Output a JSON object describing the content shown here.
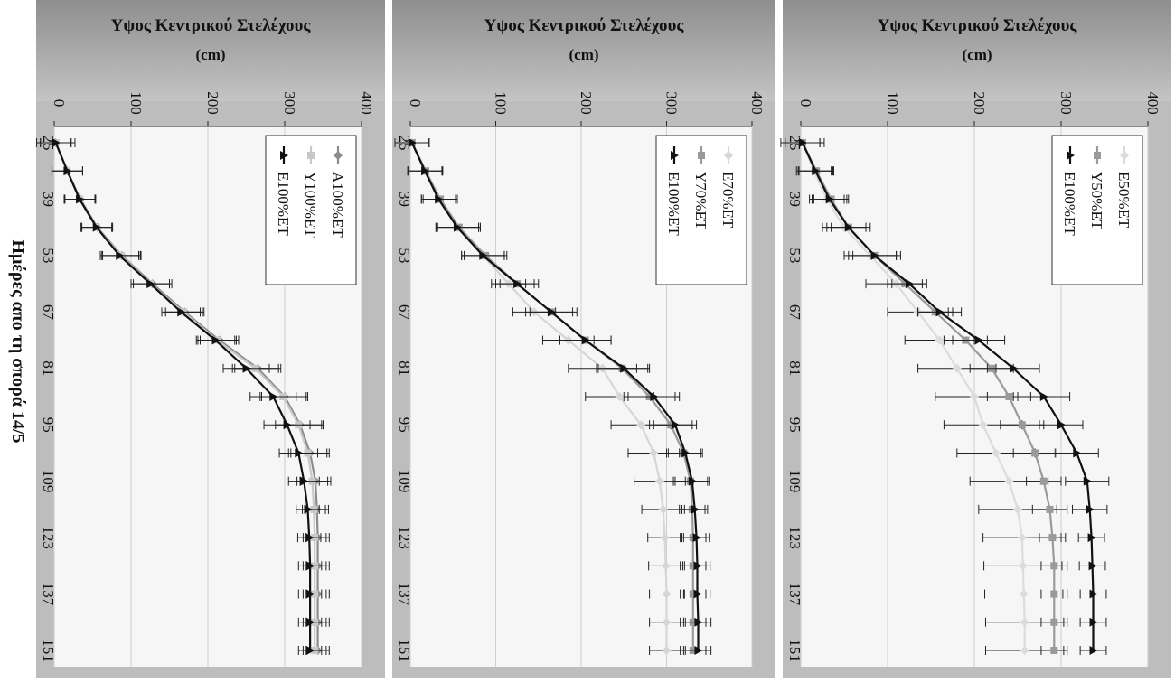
{
  "figure": {
    "xlabel": "Ημέρες απο τη σπορά 14/5"
  },
  "chart_data": [
    {
      "type": "line",
      "ylabel": "Υψος Κεντρικού Στελέχους (cm)",
      "xlabel": "Ημέρες απο τη σπορά 14/5",
      "x": [
        25,
        32,
        39,
        46,
        53,
        60,
        67,
        74,
        81,
        88,
        95,
        102,
        109,
        116,
        123,
        130,
        137,
        144,
        151
      ],
      "x_ticks": [
        25,
        39,
        53,
        67,
        81,
        95,
        109,
        123,
        137,
        151
      ],
      "ylim": [
        0,
        400
      ],
      "y_ticks": [
        0,
        100,
        200,
        300,
        400
      ],
      "grid": true,
      "legend_position": "top-right",
      "series": [
        {
          "name": "E50%ET",
          "color": "#dcdcdc",
          "marker": "diamond",
          "values": [
            2,
            15,
            30,
            50,
            80,
            110,
            135,
            160,
            180,
            200,
            210,
            225,
            240,
            250,
            255,
            256,
            257,
            258,
            258
          ],
          "error": [
            20,
            20,
            20,
            25,
            30,
            35,
            35,
            40,
            45,
            45,
            45,
            45,
            45,
            45,
            45,
            45,
            45,
            45,
            45
          ]
        },
        {
          "name": "Y50%ET",
          "color": "#9a9a9a",
          "marker": "square",
          "values": [
            2,
            18,
            35,
            55,
            85,
            120,
            155,
            190,
            220,
            240,
            255,
            270,
            280,
            287,
            290,
            292,
            292,
            292,
            292
          ],
          "error": [
            20,
            20,
            20,
            25,
            30,
            20,
            20,
            25,
            25,
            25,
            25,
            25,
            20,
            20,
            15,
            15,
            15,
            15,
            15
          ]
        },
        {
          "name": "E100%ET",
          "color": "#111111",
          "marker": "triangle",
          "values": [
            2,
            17,
            33,
            55,
            85,
            125,
            160,
            205,
            245,
            280,
            300,
            318,
            330,
            333,
            335,
            336,
            337,
            337,
            337
          ],
          "error": [
            25,
            20,
            20,
            20,
            25,
            20,
            25,
            30,
            30,
            30,
            25,
            25,
            25,
            20,
            15,
            15,
            15,
            15,
            15
          ]
        }
      ]
    },
    {
      "type": "line",
      "ylabel": "Υψος Κεντρικού Στελέχους (cm)",
      "xlabel": "Ημέρες απο τη σπορά 14/5",
      "x": [
        25,
        32,
        39,
        46,
        53,
        60,
        67,
        74,
        81,
        88,
        95,
        102,
        109,
        116,
        123,
        130,
        137,
        144,
        151
      ],
      "x_ticks": [
        25,
        39,
        53,
        67,
        81,
        95,
        109,
        123,
        137,
        151
      ],
      "ylim": [
        0,
        400
      ],
      "y_ticks": [
        0,
        100,
        200,
        300,
        400
      ],
      "grid": true,
      "legend_position": "top-right",
      "series": [
        {
          "name": "E70%ET",
          "color": "#d6d6d6",
          "marker": "diamond",
          "values": [
            2,
            17,
            33,
            55,
            85,
            115,
            145,
            185,
            225,
            245,
            270,
            285,
            292,
            296,
            298,
            299,
            300,
            300,
            300
          ],
          "error": [
            20,
            20,
            20,
            25,
            25,
            20,
            25,
            30,
            40,
            40,
            35,
            30,
            30,
            25,
            20,
            20,
            20,
            20,
            20
          ]
        },
        {
          "name": "Y70%ET",
          "color": "#9a9a9a",
          "marker": "square",
          "values": [
            2,
            18,
            35,
            57,
            88,
            125,
            165,
            205,
            248,
            280,
            305,
            320,
            328,
            330,
            331,
            331,
            331,
            331,
            331
          ],
          "error": [
            20,
            20,
            20,
            25,
            25,
            20,
            25,
            30,
            30,
            30,
            25,
            20,
            20,
            15,
            15,
            15,
            15,
            15,
            15
          ]
        },
        {
          "name": "E100%ET",
          "color": "#111111",
          "marker": "triangle",
          "values": [
            2,
            17,
            33,
            55,
            85,
            125,
            165,
            205,
            250,
            285,
            310,
            322,
            330,
            333,
            335,
            336,
            336,
            337,
            337
          ],
          "error": [
            20,
            20,
            20,
            25,
            25,
            25,
            30,
            30,
            30,
            30,
            25,
            20,
            20,
            15,
            15,
            15,
            15,
            15,
            15
          ]
        }
      ]
    },
    {
      "type": "line",
      "ylabel": "Υψος Κεντρικού Στελέχους (cm)",
      "xlabel": "Ημέρες απο τη σπορά 14/5",
      "x": [
        25,
        32,
        39,
        46,
        53,
        60,
        67,
        74,
        81,
        88,
        95,
        102,
        109,
        116,
        123,
        130,
        137,
        144,
        151
      ],
      "x_ticks": [
        25,
        39,
        53,
        67,
        81,
        95,
        109,
        123,
        137,
        151
      ],
      "ylim": [
        0,
        400
      ],
      "y_ticks": [
        0,
        100,
        200,
        300,
        400
      ],
      "grid": true,
      "legend_position": "top-right",
      "series": [
        {
          "name": "A100%ET",
          "color": "#8c8c8c",
          "marker": "diamond",
          "values": [
            2,
            17,
            34,
            56,
            88,
            128,
            170,
            215,
            265,
            300,
            320,
            333,
            340,
            342,
            343,
            343,
            343,
            343,
            343
          ],
          "error": [
            20,
            20,
            20,
            20,
            25,
            25,
            25,
            25,
            30,
            30,
            30,
            25,
            20,
            15,
            15,
            15,
            15,
            15,
            15
          ]
        },
        {
          "name": "Y100%ET",
          "color": "#c8c8c8",
          "marker": "square",
          "values": [
            2,
            17,
            33,
            55,
            87,
            125,
            168,
            212,
            262,
            298,
            318,
            330,
            336,
            338,
            339,
            339,
            339,
            339,
            339
          ],
          "error": [
            20,
            20,
            20,
            20,
            25,
            25,
            25,
            25,
            30,
            30,
            30,
            25,
            20,
            15,
            15,
            15,
            15,
            15,
            15
          ]
        },
        {
          "name": "E100%ET",
          "color": "#111111",
          "marker": "triangle",
          "values": [
            2,
            17,
            33,
            55,
            85,
            125,
            165,
            210,
            250,
            285,
            303,
            318,
            325,
            330,
            332,
            333,
            333,
            333,
            333
          ],
          "error": [
            25,
            20,
            20,
            20,
            25,
            25,
            25,
            25,
            30,
            30,
            30,
            25,
            20,
            15,
            15,
            15,
            15,
            15,
            15
          ]
        }
      ]
    }
  ]
}
